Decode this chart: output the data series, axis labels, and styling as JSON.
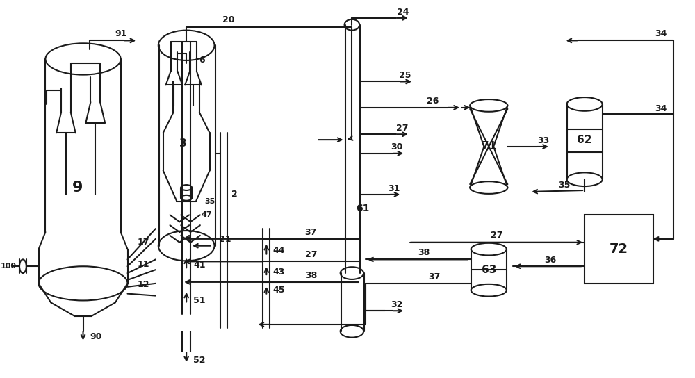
{
  "bg_color": "#ffffff",
  "line_color": "#1a1a1a",
  "lw": 1.5,
  "fig_width": 10.0,
  "fig_height": 5.44
}
